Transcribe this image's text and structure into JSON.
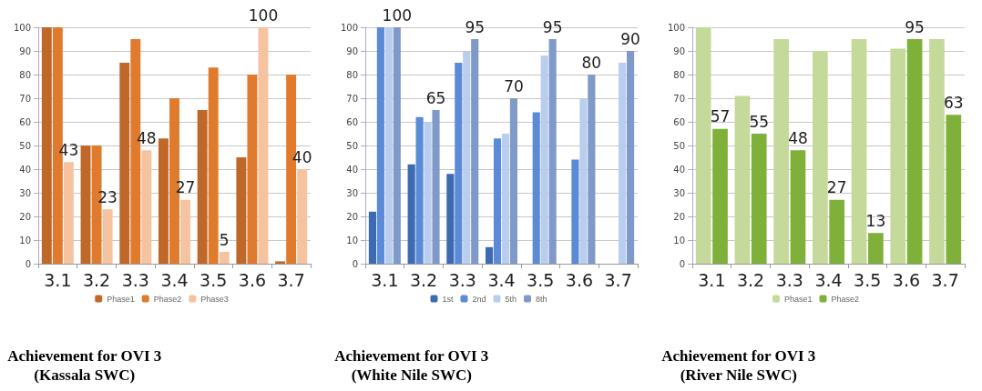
{
  "chart_data": [
    {
      "type": "bar",
      "title": "Achievement for OVI 3\n(Kassala SWC)",
      "categories": [
        "3.1",
        "3.2",
        "3.3",
        "3.4",
        "3.5",
        "3.6",
        "3.7"
      ],
      "ylim": [
        0,
        100
      ],
      "yticks": [
        0,
        10,
        20,
        30,
        40,
        50,
        60,
        70,
        80,
        90,
        100
      ],
      "grid": "y",
      "legend": "bottom",
      "series": [
        {
          "name": "Phase1",
          "color": "#c0682a",
          "values": [
            100,
            50,
            85,
            53,
            65,
            45,
            1
          ]
        },
        {
          "name": "Phase2",
          "color": "#e07b2e",
          "values": [
            100,
            50,
            95,
            70,
            83,
            80,
            80
          ]
        },
        {
          "name": "Phase3",
          "color": "#f5c3a0",
          "values": [
            43,
            23,
            48,
            27,
            5,
            100,
            40
          ],
          "value_labels": [
            "43",
            "23",
            "48",
            "27",
            "5",
            "100",
            "40"
          ]
        }
      ]
    },
    {
      "type": "bar",
      "title": "Achievement for OVI 3\n(White Nile SWC)",
      "categories": [
        "3.1",
        "3.2",
        "3.3",
        "3.4",
        "3.5",
        "3.6",
        "3.7"
      ],
      "ylim": [
        0,
        100
      ],
      "yticks": [
        0,
        10,
        20,
        30,
        40,
        50,
        60,
        70,
        80,
        90,
        100
      ],
      "grid": "y",
      "legend": "bottom",
      "series": [
        {
          "name": "1st",
          "color": "#3d6bb3",
          "values": [
            22,
            42,
            38,
            7,
            0,
            0,
            0
          ]
        },
        {
          "name": "2nd",
          "color": "#5b8ad6",
          "values": [
            100,
            62,
            85,
            53,
            64,
            44,
            0
          ]
        },
        {
          "name": "5th",
          "color": "#b9cdee",
          "values": [
            100,
            60,
            90,
            55,
            88,
            70,
            85
          ]
        },
        {
          "name": "8th",
          "color": "#7f9ac8",
          "values": [
            100,
            65,
            95,
            70,
            95,
            80,
            90
          ],
          "value_labels": [
            "100",
            "65",
            "95",
            "70",
            "95",
            "80",
            "90"
          ]
        }
      ]
    },
    {
      "type": "bar",
      "title": "Achievement for OVI 3\n(River Nile SWC)",
      "categories": [
        "3.1",
        "3.2",
        "3.3",
        "3.4",
        "3.5",
        "3.6",
        "3.7"
      ],
      "ylim": [
        0,
        100
      ],
      "yticks": [
        0,
        10,
        20,
        30,
        40,
        50,
        60,
        70,
        80,
        90,
        100
      ],
      "grid": "y",
      "legend": "bottom",
      "series": [
        {
          "name": "Phase1",
          "color": "#c4d99a",
          "values": [
            100,
            71,
            95,
            90,
            95,
            91,
            95
          ]
        },
        {
          "name": "Phase2",
          "color": "#7fb13a",
          "values": [
            57,
            55,
            48,
            27,
            13,
            95,
            63
          ],
          "value_labels": [
            "57",
            "55",
            "48",
            "27",
            "13",
            "95",
            "63"
          ]
        }
      ]
    }
  ]
}
